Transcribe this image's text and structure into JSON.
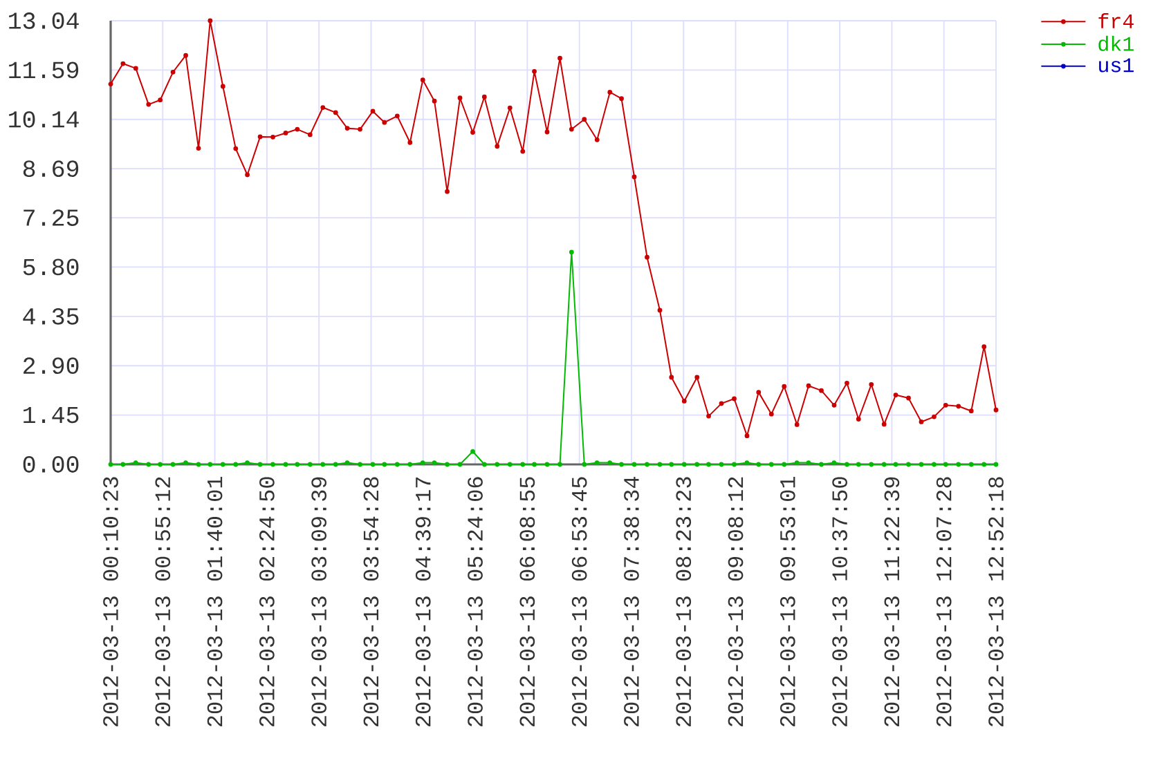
{
  "chart_data": {
    "type": "line",
    "x": [
      "2012-03-13T00:10:23",
      "2012-03-13T00:21",
      "2012-03-13T00:32",
      "2012-03-13T00:43",
      "2012-03-13T00:53",
      "2012-03-13T01:04",
      "2012-03-13T01:15",
      "2012-03-13T01:26",
      "2012-03-13T01:36",
      "2012-03-13T01:47",
      "2012-03-13T01:58",
      "2012-03-13T02:08",
      "2012-03-13T02:19",
      "2012-03-13T02:30",
      "2012-03-13T02:41",
      "2012-03-13T02:51",
      "2012-03-13T03:02",
      "2012-03-13T03:13",
      "2012-03-13T03:24",
      "2012-03-13T03:34",
      "2012-03-13T03:45",
      "2012-03-13T03:56",
      "2012-03-13T04:06",
      "2012-03-13T04:17",
      "2012-03-13T04:28",
      "2012-03-13T04:39",
      "2012-03-13T04:49",
      "2012-03-13T05:00",
      "2012-03-13T05:11",
      "2012-03-13T05:22",
      "2012-03-13T05:32",
      "2012-03-13T05:43",
      "2012-03-13T05:54",
      "2012-03-13T06:05",
      "2012-03-13T06:15",
      "2012-03-13T06:26",
      "2012-03-13T06:37",
      "2012-03-13T06:47",
      "2012-03-13T06:58",
      "2012-03-13T07:09",
      "2012-03-13T07:20",
      "2012-03-13T07:30",
      "2012-03-13T07:41",
      "2012-03-13T07:52",
      "2012-03-13T08:03",
      "2012-03-13T08:13",
      "2012-03-13T08:24",
      "2012-03-13T08:35",
      "2012-03-13T08:45",
      "2012-03-13T08:56",
      "2012-03-13T09:07",
      "2012-03-13T09:18",
      "2012-03-13T09:28",
      "2012-03-13T09:39",
      "2012-03-13T09:50",
      "2012-03-13T10:01",
      "2012-03-13T10:11",
      "2012-03-13T10:22",
      "2012-03-13T10:33",
      "2012-03-13T10:44",
      "2012-03-13T10:54",
      "2012-03-13T11:05",
      "2012-03-13T11:16",
      "2012-03-13T11:26",
      "2012-03-13T11:37",
      "2012-03-13T11:48",
      "2012-03-13T11:59",
      "2012-03-13T12:09",
      "2012-03-13T12:20",
      "2012-03-13T12:31",
      "2012-03-13T12:42",
      "2012-03-13T12:52:18"
    ],
    "xlim": [
      "2012-03-13T00:10:23",
      "2012-03-13T12:52:18"
    ],
    "xticks": [
      {
        "value": "2012-03-13T00:10:23",
        "label": "2012-03-13 00:10:23"
      },
      {
        "value": "2012-03-13T00:55:12",
        "label": "2012-03-13 00:55:12"
      },
      {
        "value": "2012-03-13T01:40:01",
        "label": "2012-03-13 01:40:01"
      },
      {
        "value": "2012-03-13T02:24:50",
        "label": "2012-03-13 02:24:50"
      },
      {
        "value": "2012-03-13T03:09:39",
        "label": "2012-03-13 03:09:39"
      },
      {
        "value": "2012-03-13T03:54:28",
        "label": "2012-03-13 03:54:28"
      },
      {
        "value": "2012-03-13T04:39:17",
        "label": "2012-03-13 04:39:17"
      },
      {
        "value": "2012-03-13T05:24:06",
        "label": "2012-03-13 05:24:06"
      },
      {
        "value": "2012-03-13T06:08:55",
        "label": "2012-03-13 06:08:55"
      },
      {
        "value": "2012-03-13T06:53:45",
        "label": "2012-03-13 06:53:45"
      },
      {
        "value": "2012-03-13T07:38:34",
        "label": "2012-03-13 07:38:34"
      },
      {
        "value": "2012-03-13T08:23:23",
        "label": "2012-03-13 08:23:23"
      },
      {
        "value": "2012-03-13T09:08:12",
        "label": "2012-03-13 09:08:12"
      },
      {
        "value": "2012-03-13T09:53:01",
        "label": "2012-03-13 09:53:01"
      },
      {
        "value": "2012-03-13T10:37:50",
        "label": "2012-03-13 10:37:50"
      },
      {
        "value": "2012-03-13T11:22:39",
        "label": "2012-03-13 11:22:39"
      },
      {
        "value": "2012-03-13T12:07:28",
        "label": "2012-03-13 12:07:28"
      },
      {
        "value": "2012-03-13T12:52:18",
        "label": "2012-03-13 12:52:18"
      }
    ],
    "ylim": [
      0,
      13.04
    ],
    "yticks": [
      {
        "value": 0,
        "label": "0.00"
      },
      1.45,
      {
        "value": 2.9,
        "label": "2.90"
      },
      4.35,
      {
        "value": 5.8,
        "label": "5.80"
      },
      7.25,
      8.69,
      10.14,
      11.59,
      13.04
    ],
    "series": [
      {
        "name": "fr4",
        "color": "#cc0000",
        "values": [
          11.18,
          11.78,
          11.64,
          10.58,
          10.71,
          11.53,
          12.02,
          9.29,
          13.04,
          11.11,
          9.28,
          8.51,
          9.63,
          9.62,
          9.74,
          9.85,
          9.69,
          10.49,
          10.34,
          9.88,
          9.85,
          10.38,
          10.05,
          10.24,
          9.46,
          11.3,
          10.68,
          8.02,
          10.77,
          9.76,
          10.8,
          9.35,
          10.48,
          9.2,
          11.55,
          9.77,
          11.94,
          9.85,
          10.14,
          9.54,
          10.94,
          10.75,
          8.45,
          6.09,
          4.53,
          2.56,
          1.86,
          2.56,
          1.42,
          1.79,
          1.93,
          0.84,
          2.12,
          1.48,
          2.29,
          1.17,
          2.31,
          2.17,
          1.74,
          2.39,
          1.33,
          2.35,
          1.18,
          2.04,
          1.95,
          1.25,
          1.4,
          1.74,
          1.71,
          1.57,
          3.46,
          1.6
        ]
      },
      {
        "name": "dk1",
        "color": "#00bb00",
        "values": [
          0,
          0,
          0.05,
          0,
          0,
          0,
          0.05,
          0,
          0,
          0,
          0,
          0.05,
          0,
          0,
          0,
          0,
          0,
          0,
          0,
          0.05,
          0,
          0,
          0,
          0,
          0,
          0.05,
          0.05,
          0,
          0,
          0.38,
          0,
          0,
          0,
          0,
          0,
          0,
          0,
          6.24,
          0,
          0.05,
          0.05,
          0,
          0,
          0,
          0,
          0,
          0,
          0,
          0,
          0,
          0,
          0.05,
          0,
          0,
          0,
          0.05,
          0.05,
          0,
          0.05,
          0,
          0,
          0,
          0,
          0,
          0,
          0,
          0,
          0,
          0,
          0,
          0,
          0
        ]
      },
      {
        "name": "us1",
        "color": "#0000cc",
        "values": [
          null,
          null,
          null,
          null,
          null,
          null,
          null,
          null,
          null,
          null,
          null,
          null,
          null,
          null,
          null,
          null,
          null,
          null,
          null,
          null,
          null,
          null,
          null,
          null,
          null,
          null,
          null,
          null,
          null,
          null,
          null,
          null,
          null,
          null,
          null,
          null,
          null,
          null,
          null,
          null,
          null,
          null,
          null,
          null,
          null,
          null,
          null,
          null,
          null,
          null,
          null,
          null,
          null,
          null,
          null,
          null,
          null,
          null,
          null,
          null,
          null,
          null,
          null,
          null,
          null,
          null,
          null,
          null,
          null,
          null,
          null,
          null
        ]
      }
    ],
    "grid": true,
    "legend": "top right",
    "marker": "circle",
    "line_style": "solid"
  }
}
